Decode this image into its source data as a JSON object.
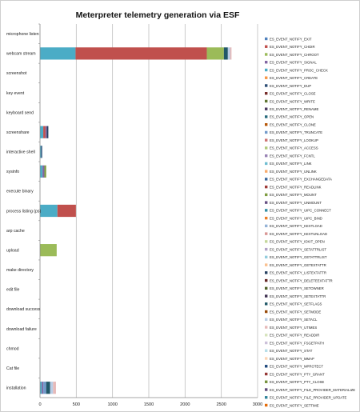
{
  "chart_data": {
    "type": "bar",
    "orientation": "horizontal",
    "stacked": true,
    "title": "Meterpreter telemetry generation via ESF",
    "xlabel": "",
    "ylabel": "",
    "xlim": [
      0,
      3000
    ],
    "x_ticks": [
      0,
      500,
      1000,
      1500,
      2000,
      2500,
      3000
    ],
    "grid": "vertical",
    "legend_position": "right",
    "categories": [
      "microphone listen",
      "webcam stream",
      "screenshot",
      "key event",
      "keyboard send",
      "screenshare",
      "interactive shell",
      "sysinfo",
      "execute binary",
      "process listing (ps)",
      "arp cache",
      "upload",
      "make directory",
      "edit file",
      "download success",
      "download failure",
      "chmod",
      "Cat file",
      "installation"
    ],
    "legend": [
      "ES_EVENT_NOTIFY_EXIT",
      "ES_EVENT_NOTIFY_CHDIR",
      "ES_EVENT_NOTIFY_CHROOT",
      "ES_EVENT_NOTIFY_SIGNAL",
      "ES_EVENT_NOTIFY_PROC_CHECK",
      "ES_EVENT_NOTIFY_CREATE",
      "ES_EVENT_NOTIFY_DUP",
      "ES_EVENT_NOTIFY_CLOSE",
      "ES_EVENT_NOTIFY_WRITE",
      "ES_EVENT_NOTIFY_RENAME",
      "ES_EVENT_NOTIFY_OPEN",
      "ES_EVENT_NOTIFY_CLONE",
      "ES_EVENT_NOTIFY_TRUNCATE",
      "ES_EVENT_NOTIFY_LOOKUP",
      "ES_EVENT_NOTIFY_ACCESS",
      "ES_EVENT_NOTIFY_FCNTL",
      "ES_EVENT_NOTIFY_LINK",
      "ES_EVENT_NOTIFY_UNLINK",
      "ES_EVENT_NOTIFY_EXCHANGEDATA",
      "ES_EVENT_NOTIFY_READLINK",
      "ES_EVENT_NOTIFY_MOUNT",
      "ES_EVENT_NOTIFY_UNMOUNT",
      "ES_EVENT_NOTIFY_UIPC_CONNECT",
      "ES_EVENT_NOTIFY_UIPC_BIND",
      "ES_EVENT_NOTIFY_KEXTLOAD",
      "ES_EVENT_NOTIFY_KEXTUNLOAD",
      "ES_EVENT_NOTIFY_IOKIT_OPEN",
      "ES_EVENT_NOTIFY_SETATTRLIST",
      "ES_EVENT_NOTIFY_GETATTRLIST",
      "ES_EVENT_NOTIFY_GETEXTATTR",
      "ES_EVENT_NOTIFY_LISTEXTATTR",
      "ES_EVENT_NOTIFY_DELETEEXTATTR",
      "ES_EVENT_NOTIFY_SETOWNER",
      "ES_EVENT_NOTIFY_SETEXTATTR",
      "ES_EVENT_NOTIFY_SETFLAGS",
      "ES_EVENT_NOTIFY_SETMODE",
      "ES_EVENT_NOTIFY_SETACL",
      "ES_EVENT_NOTIFY_UTIMES",
      "ES_EVENT_NOTIFY_READDIR",
      "ES_EVENT_NOTIFY_FSGETPATH",
      "ES_EVENT_NOTIFY_STAT",
      "ES_EVENT_NOTIFY_MMAP",
      "ES_EVENT_NOTIFY_MPROTECT",
      "ES_EVENT_NOTIFY_PTY_GRANT",
      "ES_EVENT_NOTIFY_PTY_CLOSE",
      "ES_EVENT_NOTIFY_FILE_PROVIDER_MATERIALIZE",
      "ES_EVENT_NOTIFY_FILE_PROVIDER_UPDATE",
      "ES_EVENT_NOTIFY_SETTIME"
    ],
    "colors": [
      "#4f81bd",
      "#c0504d",
      "#9bbb59",
      "#8064a2",
      "#4bacc6",
      "#f79646",
      "#2c4d75",
      "#772c2a",
      "#5f7530",
      "#4d3b62",
      "#276a7c",
      "#b65708",
      "#729aca",
      "#cd7371",
      "#afc97a",
      "#9983b5",
      "#6fbdd1",
      "#f9ab6b",
      "#3a679c",
      "#9f3b38",
      "#7e9c40",
      "#664f83",
      "#348ea5",
      "#ec7e26",
      "#95b3d7",
      "#d99694",
      "#c4d79b",
      "#b2a2c7",
      "#93cddd",
      "#fac090",
      "#254061",
      "#632523",
      "#4f6228",
      "#3f3151",
      "#215868",
      "#974806",
      "#b9cde5",
      "#e6b9b8",
      "#d7e4bd",
      "#ccc1da",
      "#b7dee8",
      "#fcd5b5",
      "#1f497d",
      "#953735",
      "#76923c",
      "#5f497a",
      "#31859c",
      "#e46c0a"
    ],
    "bars": [
      {
        "category": "microphone listen",
        "segments": []
      },
      {
        "category": "webcam stream",
        "segments": [
          {
            "series": "ES_EVENT_NOTIFY_PROC_CHECK",
            "value": 490
          },
          {
            "series": "ES_EVENT_NOTIFY_CHDIR",
            "value": 1810
          },
          {
            "series": "ES_EVENT_NOTIFY_CHROOT",
            "value": 235
          },
          {
            "series": "ES_EVENT_NOTIFY_SETFLAGS",
            "value": 55
          },
          {
            "series": "ES_EVENT_NOTIFY_SETACL",
            "value": 30
          },
          {
            "series": "ES_EVENT_NOTIFY_UTIMES",
            "value": 20
          }
        ]
      },
      {
        "category": "screenshot",
        "segments": []
      },
      {
        "category": "key event",
        "segments": []
      },
      {
        "category": "keyboard send",
        "segments": []
      },
      {
        "category": "screenshare",
        "segments": [
          {
            "series": "ES_EVENT_NOTIFY_PROC_CHECK",
            "value": 45
          },
          {
            "series": "ES_EVENT_NOTIFY_CHDIR",
            "value": 30
          },
          {
            "series": "ES_EVENT_NOTIFY_SIGNAL",
            "value": 20
          },
          {
            "series": "ES_EVENT_NOTIFY_LISTEXTATTR",
            "value": 20
          }
        ]
      },
      {
        "category": "interactive shell",
        "segments": [
          {
            "series": "ES_EVENT_NOTIFY_PROC_CHECK",
            "value": 15
          },
          {
            "series": "ES_EVENT_NOTIFY_DUP",
            "value": 15
          }
        ]
      },
      {
        "category": "sysinfo",
        "segments": [
          {
            "series": "ES_EVENT_NOTIFY_PROC_CHECK",
            "value": 35
          },
          {
            "series": "ES_EVENT_NOTIFY_SIGNAL",
            "value": 25
          },
          {
            "series": "ES_EVENT_NOTIFY_MOUNT",
            "value": 25
          }
        ]
      },
      {
        "category": "execute binary",
        "segments": []
      },
      {
        "category": "process listing (ps)",
        "segments": [
          {
            "series": "ES_EVENT_NOTIFY_PROC_CHECK",
            "value": 240
          },
          {
            "series": "ES_EVENT_NOTIFY_CHDIR",
            "value": 255
          }
        ]
      },
      {
        "category": "arp cache",
        "segments": []
      },
      {
        "category": "upload",
        "segments": [
          {
            "series": "ES_EVENT_NOTIFY_CHROOT",
            "value": 230
          }
        ]
      },
      {
        "category": "make directory",
        "segments": []
      },
      {
        "category": "edit file",
        "segments": []
      },
      {
        "category": "download success",
        "segments": []
      },
      {
        "category": "download failure",
        "segments": []
      },
      {
        "category": "chmod",
        "segments": []
      },
      {
        "category": "Cat file",
        "segments": []
      },
      {
        "category": "installation",
        "segments": [
          {
            "series": "ES_EVENT_NOTIFY_PROC_CHECK",
            "value": 25
          },
          {
            "series": "ES_EVENT_NOTIFY_SIGNAL",
            "value": 20
          },
          {
            "series": "ES_EVENT_NOTIFY_TRUNCATE",
            "value": 40
          },
          {
            "series": "ES_EVENT_NOTIFY_SETFLAGS",
            "value": 55
          },
          {
            "series": "ES_EVENT_NOTIFY_SETACL",
            "value": 40
          },
          {
            "series": "ES_EVENT_NOTIFY_UTIMES",
            "value": 40
          }
        ]
      }
    ]
  }
}
